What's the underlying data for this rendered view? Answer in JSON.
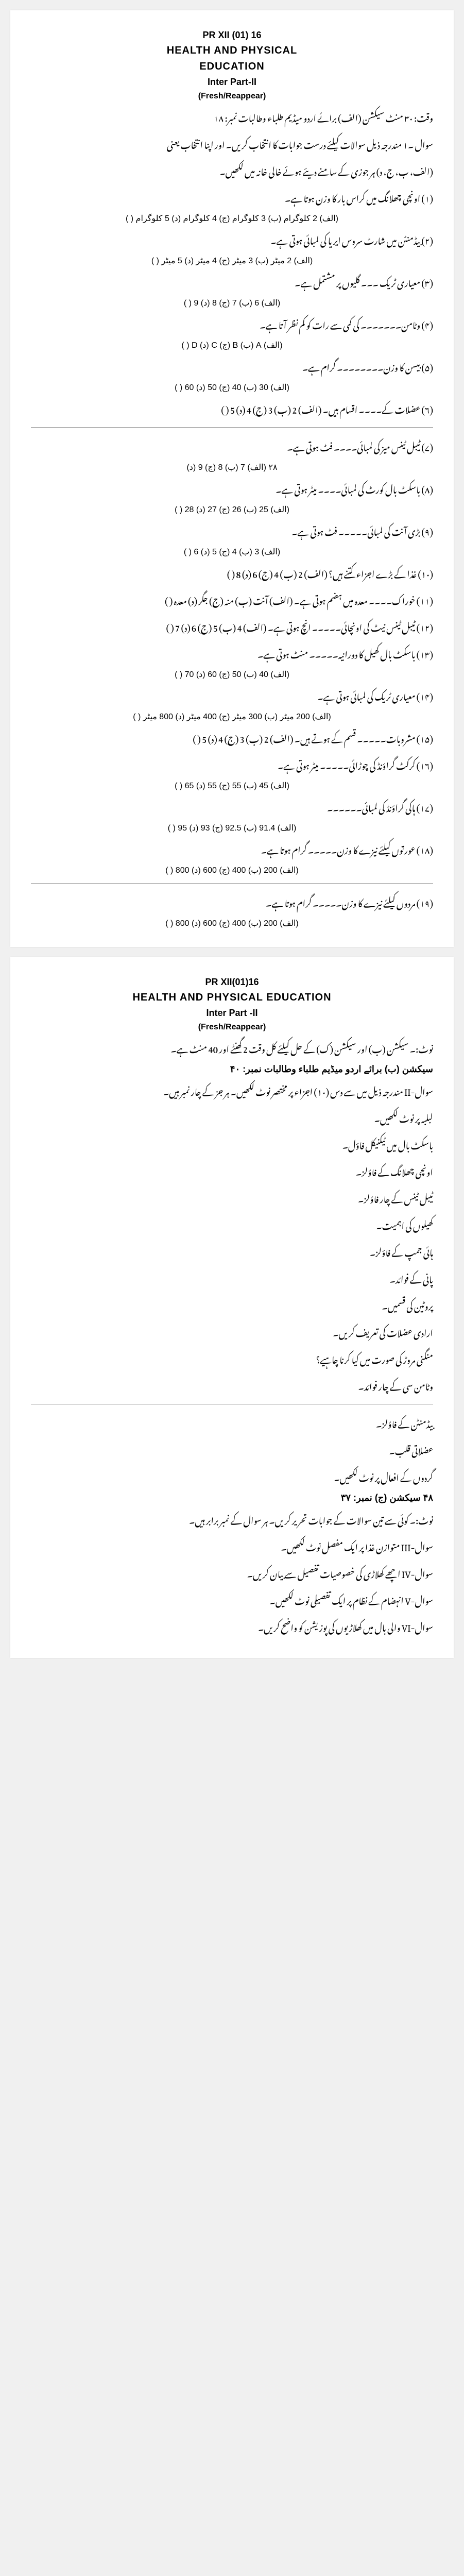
{
  "paper1": {
    "code": "PR XII (01) 16",
    "title_line1": "HEALTH AND PHYSICAL",
    "title_line2": "EDUCATION",
    "subtitle": "Inter Part-II",
    "fresh": "(Fresh/Reappear)",
    "header_right": "وقت: ۳۰ منٹ   سیکشن (الف) برائے اردو میڈیم طلباء وطالبات   نمبر: ۱۸",
    "instr1": "سوال ۔۱ مندرجہ ذیل سوالات کیلئے درست جوابات کا انتخاب کریں۔ اور اپنا انتخاب یعنی",
    "instr2": "(الف، ب، ج، د) ہر جوزی کے سامنے دیئے ہوئے خالی خانہ میں لکھیں۔",
    "q1": "(۱) اونچی چھلانگ میں کراس بار کا وزن ہوتا ہے۔",
    "q1opts": "(الف) 2 کلوگرام (ب) 3 کلوگرام (ج) 4 کلوگرام (د) 5 کلوگرام (   )",
    "q2": "(۲) بیڈمنٹن میں شارٹ سروس ایریا کی لمبائی ہوتی ہے۔",
    "q2opts": "(الف) 2 میٹر (ب) 3 میٹر (ج) 4 میٹر (د) 5 میٹر (   )",
    "q3": "(۳) معیاری ٹریک ۔۔۔ گلیوں پر مشتمل ہے۔",
    "q3opts": "(الف) 6 (ب) 7 (ج) 8 (د) 9 (   )",
    "q4": "(۴) وٹامن۔۔۔۔۔۔۔ کی کمی سے رات کو کم نظر آتا ہے۔",
    "q4opts": "(الف) A (ب) B (ج) C (د) D (   )",
    "q5": "(۵) بیسن کا وزن۔۔۔۔۔۔۔۔ گرام ہے۔",
    "q5opts": "(الف) 30 (ب) 40 (ج) 50 (د) 60 (   )",
    "q6": "(۶) عضلات کے۔۔۔۔ اقسام ہیں۔ (الف) 2 (ب) 3 (ج) 4 (د) 5 (   )",
    "q7": "(۷) ٹیبل ٹینس میز کی لمبائی۔۔۔۔ فٹ ہوتی ہے۔",
    "q7opts": "۲۸    (الف) 7 (ب) 8 (ج) 9 (د)",
    "q8": "(۸) باسکٹ بال کورٹ کی لمبائی۔۔۔۔ میٹر ہوتی ہے۔",
    "q8opts": "(الف) 25 (ب) 26 (ج) 27 (د) 28 (   )",
    "q9": "(۹) بڑی آنت کی لمبائی۔۔۔۔۔ فٹ ہوتی ہے۔",
    "q9opts": "(الف) 3 (ب) 4 (ج) 5 (د) 6 (   )",
    "q10": "(۱۰) غذا کے بڑے اجزاء کتنے ہیں؟ (الف) 2 (ب) 4 (ج) 6 (د) 8 (   )",
    "q11": "(۱۱) خوراک۔۔۔۔ معدہ میں ہضم ہوتی ہے۔ (الف) آنت (ب) منہ (ج) جگر (د) معدہ (   )",
    "q12": "(۱۲) ٹیبل ٹینس نیٹ کی اونچائی۔۔۔۔۔ انچ ہوتی ہے۔ (الف) 4 (ب) 5 (ج) 6 (د) 7 (   )",
    "q13": "(۱۳) باسکٹ بال کھیل کا دورانیہ۔۔۔۔۔ منٹ ہوتی ہے۔",
    "q13opts": "(الف) 40 (ب) 50 (ج) 60 (د) 70 (   )",
    "q14": "(۱۴) معیاری ٹریک کی لمبائی ہوتی ہے۔",
    "q14opts": "(الف) 200 میٹر (ب) 300 میٹر (ج) 400 میٹر (د) 800 میٹر (   )",
    "q15": "(۱۵) مشروبات۔۔۔۔۔ قسم کے ہوتے ہیں۔ (الف) 2 (ب) 3 (ج) 4 (د) 5 (   )",
    "q16": "(۱۶) کرکٹ گراؤنڈ کی چوڑائی۔۔۔۔۔ میٹر ہوتی ہے۔",
    "q16opts": "(الف) 45 (ب) 55 (ج) 55 (د) 65 (   )",
    "q17": "(۱۷) ہاکی گراؤنڈ کی لمبائی۔۔۔۔۔۔",
    "q17opts": "(الف) 91.4 (ب) 92.5 (ج) 93 (د) 95 (   )",
    "q18": "(۱۸) عورتوں کیلئے نیزے کا وزن۔۔۔۔۔ گرام ہوتا ہے۔",
    "q18opts": "(الف) 200 (ب) 400 (ج) 600 (د) 800 (   )",
    "q19": "(۱۹) مردوں کیلئے نیزے کا وزن۔۔۔۔۔ گرام ہوتا ہے۔",
    "q19opts": "(الف) 200 (ب) 400 (ج) 600 (د) 800 (   )"
  },
  "paper2": {
    "code": "PR XII(01)16",
    "title": "HEALTH AND PHYSICAL EDUCATION",
    "subtitle": "Inter Part -II",
    "fresh": "(Fresh/Reappear)",
    "note": "نوٹ:۔ سیکشن (ب) اور سیکشن (ک) کے حل کیلئے کل وقت 2 گھنٹے اور 40 منٹ ہے۔",
    "section_b": "سیکشن (ب)  برائے اردو میڈیم طلباء وطالبات  نمبر: ۴۰",
    "instr": "سوال-II مندرجہ ذیل میں سے دس (۱۰) اجزاء پر مختصر نوٹ لکھیں۔ ہر جز کے چار نمبر ہیں۔",
    "items": [
      "لبلبہ پر نوٹ لکھیں۔",
      "باسکٹ بال میں ٹیکنیکل فاؤل۔",
      "اونچی چھلانگ کے فاؤلز۔",
      "ٹیبل ٹینس کے چار فاؤلز۔",
      "کھیلوں کی اہمیت۔",
      "ہائی جمپ کے فاؤلز۔",
      "پانی کے فوائد۔",
      "پروٹین کی قسمیں۔",
      "ارادی عضلات کی تعریف کریں۔",
      "منگنی مروڑ کی صورت میں کیا کرنا چاہیے؟",
      "وٹامن سی کے چار فوائد۔",
      "بیڈمنٹن کے فاؤلز۔",
      "عضلاتی قلب۔",
      "گردوں کے افعال پر نوٹ لکھیں۔"
    ],
    "section_j": "۴۸    سیکشن (ج) نمبر: ۳۷",
    "note2": "نوٹ:۔ کوئی سے تین سوالات کے جوابات تحریر کریں۔ ہر سوال کے نمبر برابر ہیں۔",
    "long_q": [
      "سوال-III متوازن غذا پر ایک مفصل نوٹ لکھیں۔",
      "سوال-IV اچھے کھلاڑی کی خصوصیات تفصیل سے بیان کریں۔",
      "سوال-V انہضام کے نظام پر ایک تفصیلی نوٹ لکھیں۔",
      "سوال-VI والی بال میں کھلاڑیوں کی پوزیشن کو واضح کریں۔"
    ]
  }
}
